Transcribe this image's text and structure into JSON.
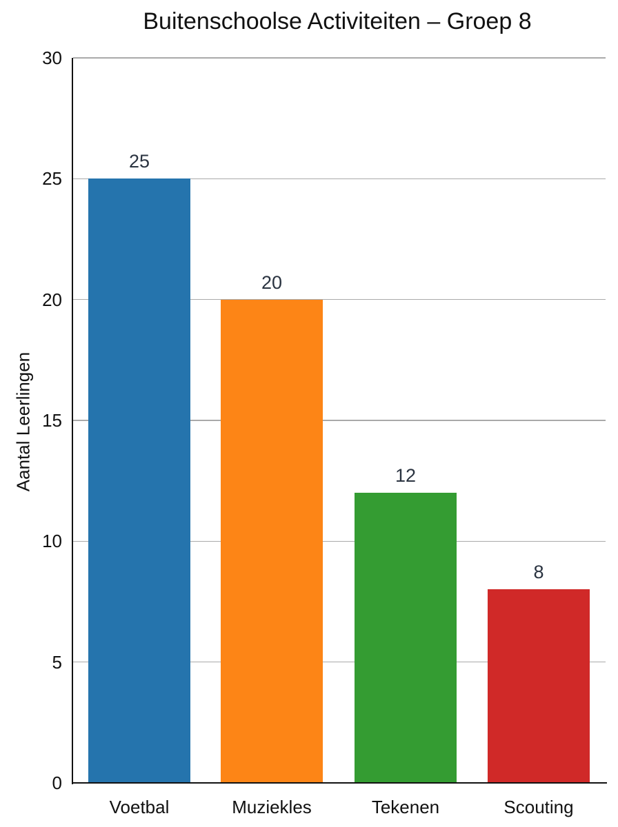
{
  "chart_data": {
    "type": "bar",
    "title": "Buitenschoolse Activiteiten – Groep 8",
    "xlabel": "",
    "ylabel": "Aantal Leerlingen",
    "categories": [
      "Voetbal",
      "Muziekles",
      "Tekenen",
      "Scouting"
    ],
    "values": [
      25,
      20,
      12,
      8
    ],
    "colors": [
      "#2574ad",
      "#fd8516",
      "#349c32",
      "#d02928"
    ],
    "ylim": [
      0,
      30
    ],
    "yticks": [
      0,
      5,
      10,
      15,
      20,
      25,
      30
    ],
    "grid": true,
    "data_labels": [
      "25",
      "20",
      "12",
      "8"
    ],
    "legend": null
  }
}
